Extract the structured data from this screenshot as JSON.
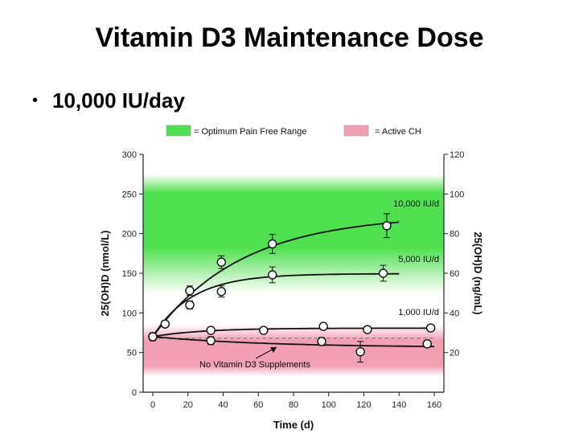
{
  "slide": {
    "title": "Vitamin D3 Maintenance Dose",
    "bullet": "10,000 IU/day"
  },
  "legend": [
    {
      "label": "= Optimum Pain Free Range",
      "color": "#4ee04e"
    },
    {
      "label": "= Active CH",
      "color": "#f2a0b6"
    }
  ],
  "chart_data": {
    "type": "line",
    "xlabel": "Time (d)",
    "ylabel": "25(OH)D (nmol/L)",
    "ylabel_right": "25(OH)D (ng/mL)",
    "xlim": [
      0,
      160
    ],
    "ylim": [
      0,
      300
    ],
    "ylim_right": [
      0,
      120
    ],
    "xticks": [
      0,
      20,
      40,
      60,
      80,
      100,
      120,
      140,
      160
    ],
    "yticks": [
      0,
      50,
      100,
      150,
      200,
      250,
      300
    ],
    "yticks_right": [
      20,
      40,
      60,
      80,
      100,
      120
    ],
    "bands": [
      {
        "name": "Optimum Pain Free Range",
        "from": 125,
        "to": 275,
        "color": "#4ee04e"
      },
      {
        "name": "Active CH",
        "from": 20,
        "to": 85,
        "color": "#f2a0b6"
      }
    ],
    "series": [
      {
        "name": "10,000 IU/d",
        "label": "10,000 IU/d",
        "x": [
          0,
          7,
          21,
          39,
          68,
          133
        ],
        "y": [
          70,
          86,
          110,
          164,
          187,
          210
        ],
        "err": [
          5,
          4,
          5,
          8,
          12,
          15
        ],
        "curve_end": 140
      },
      {
        "name": "5,000 IU/d",
        "label": "5,000 IU/d",
        "x": [
          0,
          7,
          21,
          39,
          68,
          131
        ],
        "y": [
          70,
          86,
          128,
          127,
          148,
          150
        ],
        "err": [
          5,
          4,
          6,
          7,
          10,
          10
        ],
        "curve_end": 140
      },
      {
        "name": "1,000 IU/d",
        "label": "1,000 IU/d",
        "x": [
          0,
          33,
          63,
          97,
          122,
          158
        ],
        "y": [
          70,
          78,
          78,
          83,
          79,
          81
        ],
        "err": [
          5,
          3,
          3,
          4,
          3,
          4
        ],
        "curve_end": 160
      },
      {
        "name": "No Vitamin D3 Supplements",
        "label": "No Vitamin D3 Supplements",
        "x": [
          0,
          33,
          96,
          118,
          156
        ],
        "y": [
          70,
          65,
          64,
          51,
          61
        ],
        "err": [
          5,
          5,
          5,
          13,
          4
        ],
        "curve_end": 160
      }
    ],
    "reference_line_y": 68
  }
}
